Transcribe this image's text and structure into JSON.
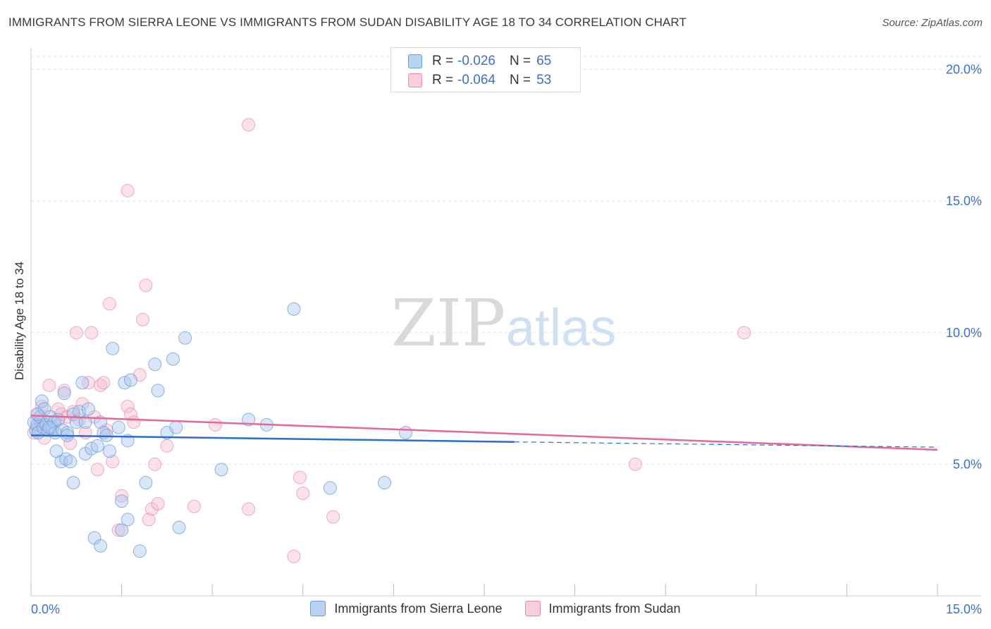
{
  "header": {
    "title": "IMMIGRANTS FROM SIERRA LEONE VS IMMIGRANTS FROM SUDAN DISABILITY AGE 18 TO 34 CORRELATION CHART",
    "source": "Source: ZipAtlas.com"
  },
  "legend": {
    "r_label": "R =",
    "n_label": "N =",
    "series1": {
      "r": "-0.026",
      "n": "65"
    },
    "series2": {
      "r": "-0.064",
      "n": "53"
    }
  },
  "watermark": {
    "zip": "ZIP",
    "atlas": "atlas"
  },
  "colors": {
    "blue_fill": "#a9c8f0",
    "blue_stroke": "#6b9bd8",
    "blue_line": "#2a6fcf",
    "pink_fill": "#f6bcd0",
    "pink_stroke": "#e98aab",
    "pink_line": "#e36a96",
    "tick_text": "#3b6fd1",
    "grid": "#e3e3e3"
  },
  "chart_data": {
    "type": "scatter",
    "title": "IMMIGRANTS FROM SIERRA LEONE VS IMMIGRANTS FROM SUDAN DISABILITY AGE 18 TO 34 CORRELATION CHART",
    "xlabel": "",
    "ylabel": "Disability Age 18 to 34",
    "xlim": [
      0,
      15
    ],
    "ylim": [
      0,
      20.5
    ],
    "x_ticks": [
      "0.0%",
      "15.0%"
    ],
    "y_ticks": [
      {
        "value": 5,
        "label": "5.0%"
      },
      {
        "value": 10,
        "label": "10.0%"
      },
      {
        "value": 15,
        "label": "15.0%"
      },
      {
        "value": 20,
        "label": "20.0%"
      }
    ],
    "grid": true,
    "legend_position": "bottom-center",
    "series": [
      {
        "name": "Immigrants from Sierra Leone",
        "color": "blue",
        "trend": {
          "x1": 0,
          "y1": 6.1,
          "x2": 8.0,
          "y2": 5.85,
          "dash_to_x": 15,
          "dash_to_y": 5.65
        },
        "points": [
          [
            0.05,
            6.6
          ],
          [
            0.08,
            6.3
          ],
          [
            0.1,
            6.5
          ],
          [
            0.12,
            6.2
          ],
          [
            0.15,
            6.8
          ],
          [
            0.18,
            7.4
          ],
          [
            0.2,
            6.4
          ],
          [
            0.22,
            7.1
          ],
          [
            0.25,
            6.5
          ],
          [
            0.28,
            6.3
          ],
          [
            0.32,
            6.8
          ],
          [
            0.35,
            6.4
          ],
          [
            0.38,
            6.6
          ],
          [
            0.4,
            6.2
          ],
          [
            0.42,
            5.5
          ],
          [
            0.45,
            6.7
          ],
          [
            0.5,
            5.1
          ],
          [
            0.52,
            6.3
          ],
          [
            0.55,
            7.7
          ],
          [
            0.58,
            5.2
          ],
          [
            0.6,
            6.2
          ],
          [
            0.65,
            5.1
          ],
          [
            0.7,
            6.9
          ],
          [
            0.7,
            4.3
          ],
          [
            0.75,
            6.6
          ],
          [
            0.8,
            7.0
          ],
          [
            0.85,
            8.1
          ],
          [
            0.9,
            5.4
          ],
          [
            0.95,
            7.1
          ],
          [
            1.0,
            5.6
          ],
          [
            1.05,
            2.2
          ],
          [
            1.1,
            5.7
          ],
          [
            1.15,
            6.6
          ],
          [
            1.15,
            1.9
          ],
          [
            1.2,
            6.2
          ],
          [
            1.25,
            6.1
          ],
          [
            1.3,
            5.5
          ],
          [
            1.35,
            9.4
          ],
          [
            1.45,
            6.4
          ],
          [
            1.5,
            2.5
          ],
          [
            1.5,
            3.6
          ],
          [
            1.55,
            8.1
          ],
          [
            1.6,
            2.9
          ],
          [
            1.6,
            5.9
          ],
          [
            1.65,
            8.2
          ],
          [
            1.8,
            1.7
          ],
          [
            1.9,
            4.3
          ],
          [
            2.05,
            8.8
          ],
          [
            2.1,
            7.8
          ],
          [
            2.25,
            6.2
          ],
          [
            2.35,
            9.0
          ],
          [
            2.4,
            6.4
          ],
          [
            2.45,
            2.6
          ],
          [
            2.55,
            9.8
          ],
          [
            3.15,
            4.8
          ],
          [
            3.6,
            6.7
          ],
          [
            3.9,
            6.5
          ],
          [
            4.35,
            10.9
          ],
          [
            4.95,
            4.1
          ],
          [
            5.85,
            4.3
          ],
          [
            6.2,
            6.2
          ],
          [
            0.1,
            6.9
          ],
          [
            0.3,
            6.4
          ],
          [
            0.6,
            6.1
          ],
          [
            0.9,
            6.6
          ]
        ]
      },
      {
        "name": "Immigrants from Sudan",
        "color": "pink",
        "trend": {
          "x1": 0,
          "y1": 6.85,
          "x2": 15,
          "y2": 5.55
        },
        "points": [
          [
            0.05,
            6.2
          ],
          [
            0.1,
            6.4
          ],
          [
            0.12,
            6.9
          ],
          [
            0.15,
            6.6
          ],
          [
            0.18,
            7.2
          ],
          [
            0.22,
            6.0
          ],
          [
            0.25,
            6.5
          ],
          [
            0.3,
            8.0
          ],
          [
            0.35,
            6.3
          ],
          [
            0.4,
            6.6
          ],
          [
            0.45,
            7.1
          ],
          [
            0.5,
            6.9
          ],
          [
            0.55,
            7.8
          ],
          [
            0.6,
            6.8
          ],
          [
            0.65,
            5.8
          ],
          [
            0.7,
            7.0
          ],
          [
            0.75,
            10.0
          ],
          [
            0.8,
            6.7
          ],
          [
            0.85,
            7.3
          ],
          [
            0.9,
            6.2
          ],
          [
            0.95,
            8.1
          ],
          [
            1.0,
            10.0
          ],
          [
            1.05,
            6.8
          ],
          [
            1.1,
            4.8
          ],
          [
            1.15,
            8.0
          ],
          [
            1.2,
            8.1
          ],
          [
            1.25,
            6.3
          ],
          [
            1.3,
            11.1
          ],
          [
            1.35,
            5.1
          ],
          [
            1.45,
            2.5
          ],
          [
            1.5,
            3.8
          ],
          [
            1.6,
            15.4
          ],
          [
            1.6,
            7.2
          ],
          [
            1.65,
            6.9
          ],
          [
            1.7,
            6.6
          ],
          [
            1.8,
            8.4
          ],
          [
            1.85,
            10.5
          ],
          [
            1.9,
            11.8
          ],
          [
            1.95,
            2.9
          ],
          [
            2.0,
            3.3
          ],
          [
            2.05,
            5.0
          ],
          [
            2.1,
            3.5
          ],
          [
            2.25,
            5.7
          ],
          [
            2.7,
            3.4
          ],
          [
            3.05,
            6.5
          ],
          [
            3.6,
            3.3
          ],
          [
            3.6,
            17.9
          ],
          [
            4.35,
            1.5
          ],
          [
            4.45,
            4.5
          ],
          [
            4.5,
            3.9
          ],
          [
            5.0,
            3.0
          ],
          [
            10.0,
            5.0
          ],
          [
            11.8,
            10.0
          ]
        ]
      }
    ]
  },
  "bottom_legend": {
    "series1_label": "Immigrants from Sierra Leone",
    "series2_label": "Immigrants from Sudan"
  }
}
